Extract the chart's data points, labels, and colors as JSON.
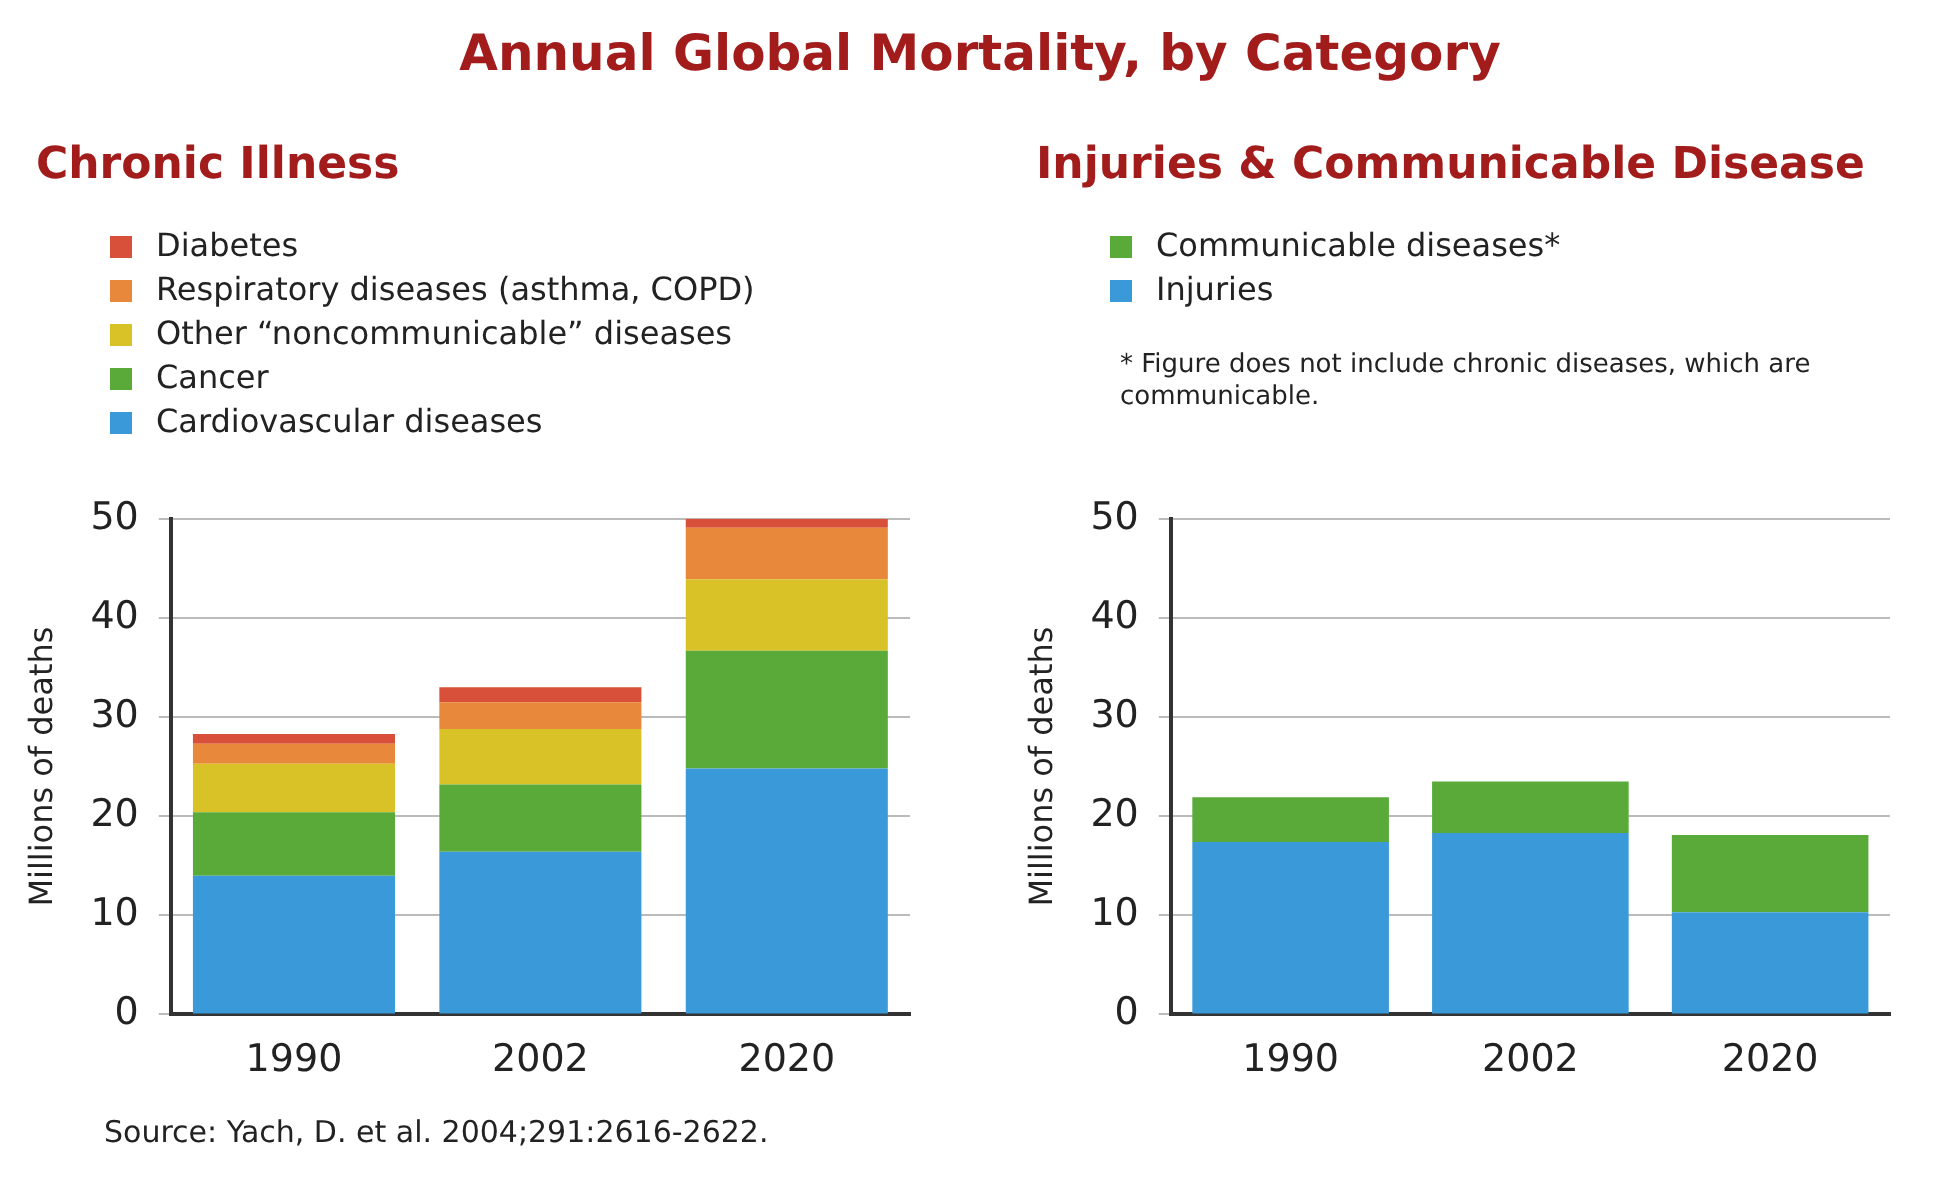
{
  "chart_data": [
    {
      "type": "bar",
      "title": "Annual Global Mortality, by Category",
      "subtitle": "Chronic Illness",
      "categories": [
        "1990",
        "2002",
        "2020"
      ],
      "stacked": true,
      "ylabel": "Millions of deaths",
      "ylim": [
        0,
        50
      ],
      "yticks": [
        0,
        10,
        20,
        30,
        40,
        50
      ],
      "grid": "y",
      "legend": "top left",
      "series": [
        {
          "name": "Cardiovascular diseases",
          "color": "#3a9ad9",
          "values": [
            14.0,
            16.4,
            24.8
          ]
        },
        {
          "name": "Cancer",
          "color": "#5aaa3a",
          "values": [
            6.4,
            6.8,
            11.9
          ]
        },
        {
          "name": "Other “noncommunicable” diseases",
          "color": "#d9c228",
          "values": [
            4.9,
            5.6,
            7.2
          ]
        },
        {
          "name": "Respiratory diseases (asthma, COPD)",
          "color": "#e8883a",
          "values": [
            2.0,
            2.7,
            5.2
          ]
        },
        {
          "name": "Diabetes",
          "color": "#d9503a",
          "values": [
            1.0,
            1.5,
            0.9
          ]
        }
      ],
      "annotations": [
        "Source: Yach, D. et al. 2004;291:2616-2622."
      ]
    },
    {
      "type": "bar",
      "title": "Injuries & Communicable Disease",
      "categories": [
        "1990",
        "2002",
        "2020"
      ],
      "stacked": true,
      "ylabel": "Millions of deaths",
      "ylim": [
        0,
        50
      ],
      "yticks": [
        0,
        10,
        20,
        30,
        40,
        50
      ],
      "grid": "y",
      "legend": "top left",
      "series": [
        {
          "name": "Injuries",
          "color": "#3a9ad9",
          "values": [
            17.4,
            18.3,
            10.3
          ]
        },
        {
          "name": "Communicable diseases*",
          "color": "#5aaa3a",
          "values": [
            4.5,
            5.2,
            7.8
          ]
        }
      ],
      "annotations": [
        "* Figure does not include chronic diseases, which are communicable."
      ]
    }
  ]
}
